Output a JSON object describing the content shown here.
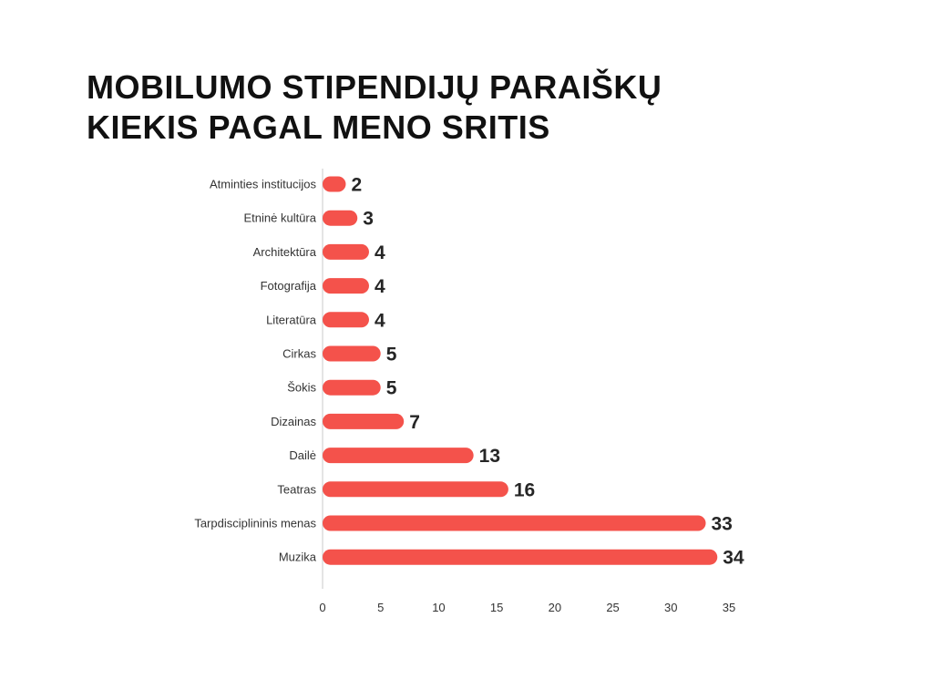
{
  "chart_data": {
    "type": "bar",
    "orientation": "horizontal",
    "title": "MOBILUMO STIPENDIJŲ PARAIŠKŲ\nKIEKIS PAGAL MENO SRITIS",
    "categories": [
      "Atminties institucijos",
      "Etninė kultūra",
      "Architektūra",
      "Fotografija",
      "Literatūra",
      "Cirkas",
      "Šokis",
      "Dizainas",
      "Dailė",
      "Teatras",
      "Tarpdisciplininis menas",
      "Muzika"
    ],
    "values": [
      2,
      3,
      4,
      4,
      4,
      5,
      5,
      7,
      13,
      16,
      33,
      34
    ],
    "xlim": [
      0,
      35
    ],
    "xticks": [
      0,
      5,
      10,
      15,
      20,
      25,
      30,
      35
    ],
    "xlabel": "",
    "ylabel": "",
    "grid": false,
    "legend": "none",
    "data_labels": true,
    "bar_color": "#F4524B"
  }
}
